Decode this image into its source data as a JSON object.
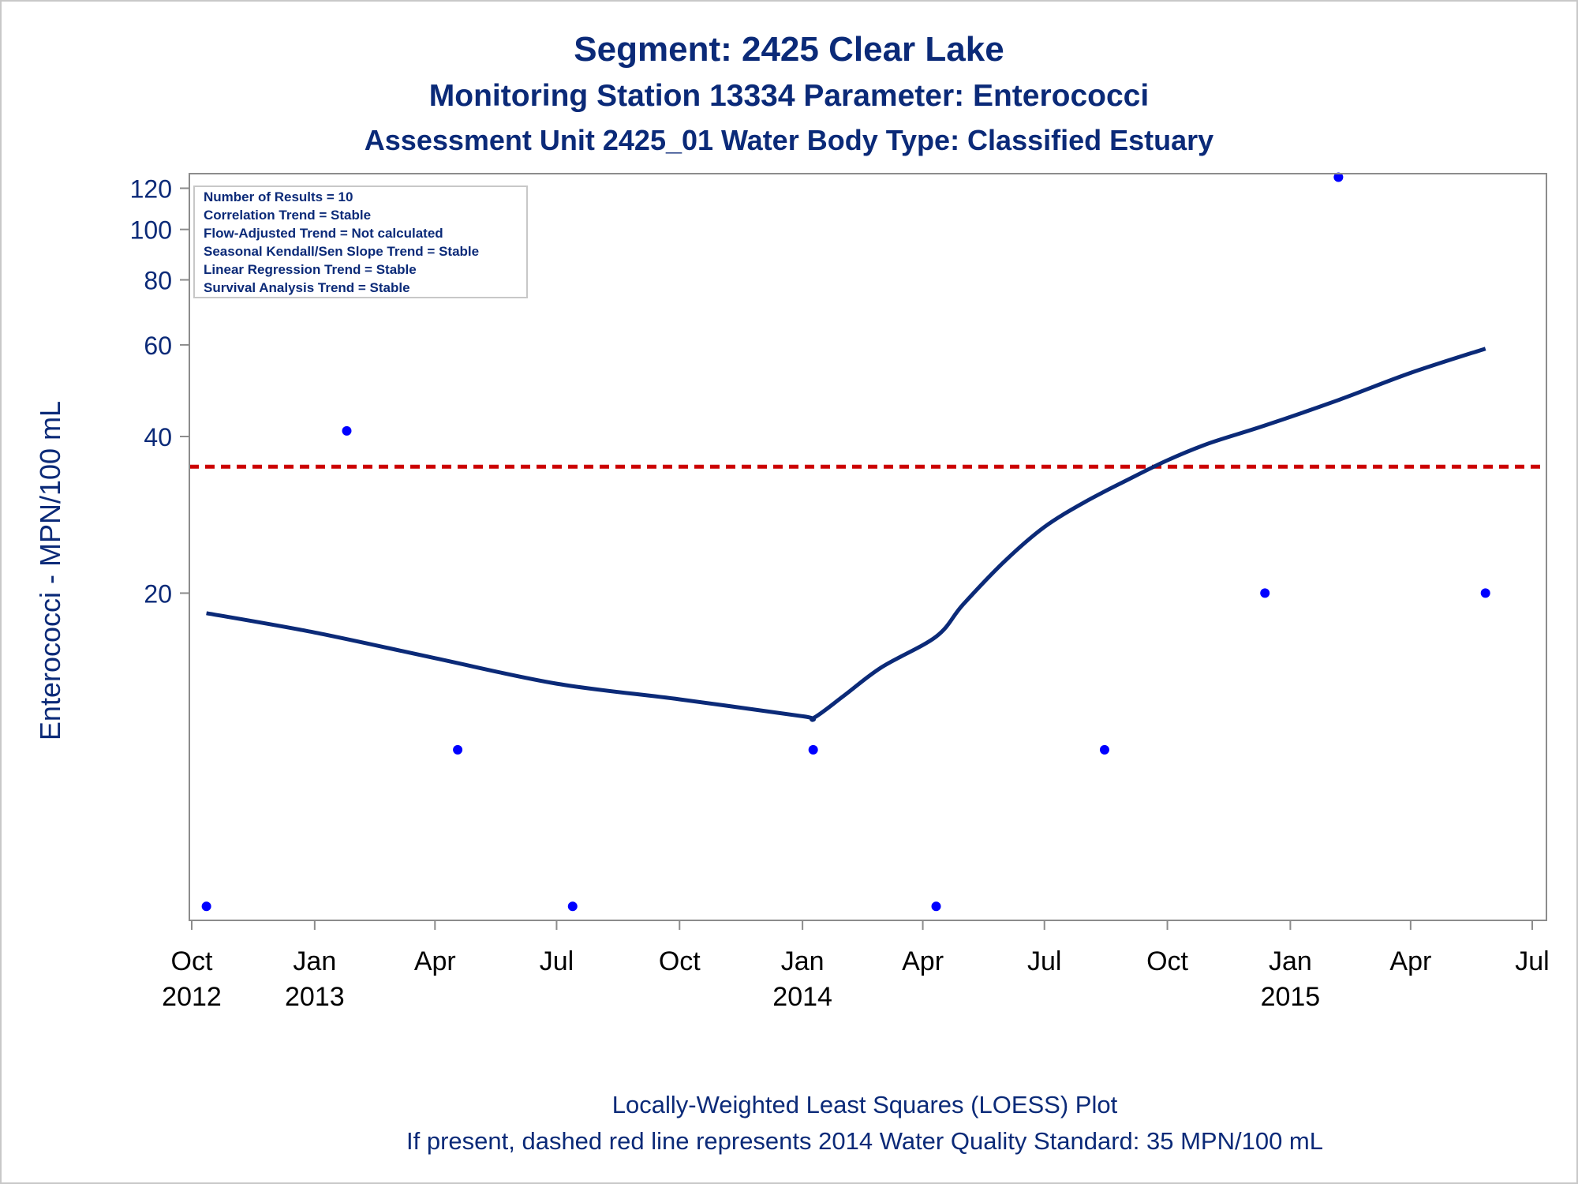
{
  "header": {
    "title": "Segment: 2425  Clear Lake",
    "subtitle1": "Monitoring Station 13334 Parameter: Enterococci",
    "subtitle2": "Assessment Unit 2425_01    Water Body Type: Classified Estuary"
  },
  "footer": {
    "line1": "Locally-Weighted Least Squares (LOESS) Plot",
    "line2": "If present, dashed red line represents 2014 Water Quality Standard: 35 MPN/100 mL"
  },
  "stats_box": {
    "lines": [
      "Number of Results = 10",
      "Correlation Trend = Stable",
      "Flow-Adjusted Trend = Not calculated",
      "Seasonal Kendall/Sen Slope Trend = Stable",
      "Linear Regression Trend = Stable",
      "Survival Analysis Trend = Stable"
    ]
  },
  "colors": {
    "text": "#0b2a78",
    "points": "#0000ff",
    "loess": "#0b2a78",
    "standard": "#cc0000",
    "axis": "#8c8c8c"
  },
  "chart_data": {
    "type": "scatter",
    "ylabel": "Enterococci - MPN/100 mL",
    "yscale": "log",
    "ylim": [
      4.7,
      128
    ],
    "yticks": [
      20,
      40,
      60,
      80,
      100,
      120
    ],
    "xlim": [
      "2012-10-01",
      "2015-07-01"
    ],
    "xticks": [
      {
        "date": "2012-10-01",
        "month": "Oct",
        "year": "2012"
      },
      {
        "date": "2013-01-01",
        "month": "Jan",
        "year": "2013"
      },
      {
        "date": "2013-04-01",
        "month": "Apr",
        "year": ""
      },
      {
        "date": "2013-07-01",
        "month": "Jul",
        "year": ""
      },
      {
        "date": "2013-10-01",
        "month": "Oct",
        "year": ""
      },
      {
        "date": "2014-01-01",
        "month": "Jan",
        "year": "2014"
      },
      {
        "date": "2014-04-01",
        "month": "Apr",
        "year": ""
      },
      {
        "date": "2014-07-01",
        "month": "Jul",
        "year": ""
      },
      {
        "date": "2014-10-01",
        "month": "Oct",
        "year": ""
      },
      {
        "date": "2015-01-01",
        "month": "Jan",
        "year": "2015"
      },
      {
        "date": "2015-04-01",
        "month": "Apr",
        "year": ""
      },
      {
        "date": "2015-07-01",
        "month": "Jul",
        "year": ""
      }
    ],
    "points": [
      {
        "date": "2012-10-12",
        "value": 5
      },
      {
        "date": "2013-01-25",
        "value": 41
      },
      {
        "date": "2013-04-18",
        "value": 10
      },
      {
        "date": "2013-07-13",
        "value": 5
      },
      {
        "date": "2014-01-09",
        "value": 10
      },
      {
        "date": "2014-04-11",
        "value": 5
      },
      {
        "date": "2014-08-15",
        "value": 10
      },
      {
        "date": "2014-12-13",
        "value": 20
      },
      {
        "date": "2015-02-06",
        "value": 126
      },
      {
        "date": "2015-05-27",
        "value": 20
      }
    ],
    "loess": [
      {
        "date": "2012-10-12",
        "value": 18.3
      },
      {
        "date": "2013-01-01",
        "value": 16.8
      },
      {
        "date": "2013-04-01",
        "value": 15.0
      },
      {
        "date": "2013-07-01",
        "value": 13.4
      },
      {
        "date": "2013-10-01",
        "value": 12.5
      },
      {
        "date": "2014-01-01",
        "value": 11.6
      },
      {
        "date": "2014-01-09",
        "value": 11.5
      },
      {
        "date": "2014-02-01",
        "value": 12.7
      },
      {
        "date": "2014-03-01",
        "value": 14.4
      },
      {
        "date": "2014-04-11",
        "value": 16.5
      },
      {
        "date": "2014-05-01",
        "value": 19.0
      },
      {
        "date": "2014-06-01",
        "value": 23.0
      },
      {
        "date": "2014-07-01",
        "value": 26.8
      },
      {
        "date": "2014-08-01",
        "value": 30.0
      },
      {
        "date": "2014-09-01",
        "value": 33.0
      },
      {
        "date": "2014-10-01",
        "value": 36.0
      },
      {
        "date": "2014-11-01",
        "value": 38.8
      },
      {
        "date": "2014-12-13",
        "value": 42.0
      },
      {
        "date": "2015-02-06",
        "value": 47.0
      },
      {
        "date": "2015-04-01",
        "value": 53.0
      },
      {
        "date": "2015-05-27",
        "value": 59.0
      }
    ],
    "reference_line": {
      "value": 35,
      "style": "dashed",
      "color": "red"
    }
  }
}
